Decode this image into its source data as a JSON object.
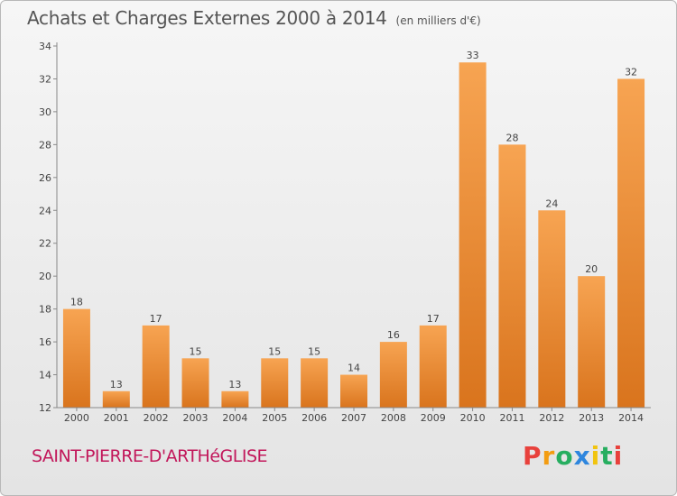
{
  "header": {
    "title": "Achats et Charges Externes 2000 à 2014",
    "unit": "(en milliers d'€)"
  },
  "footer": {
    "commune": "SAINT-PIERRE-D'ARTHéGLISE",
    "logo_text": "Proxiti"
  },
  "colors": {
    "bar_light": "#f7a452",
    "bar_dark": "#d9741d",
    "commune_text": "#c2185b",
    "logo_letters": [
      "#e8413c",
      "#f39c12",
      "#27ae60",
      "#2e86de",
      "#f1c40f",
      "#27ae60",
      "#e8413c"
    ]
  },
  "chart_data": {
    "type": "bar",
    "title": "Achats et Charges Externes 2000 à 2014",
    "subtitle": "(en milliers d'€)",
    "xlabel": "",
    "ylabel": "",
    "categories": [
      "2000",
      "2001",
      "2002",
      "2003",
      "2004",
      "2005",
      "2006",
      "2007",
      "2008",
      "2009",
      "2010",
      "2011",
      "2012",
      "2013",
      "2014"
    ],
    "values": [
      18,
      13,
      17,
      15,
      13,
      15,
      15,
      14,
      16,
      17,
      33,
      28,
      24,
      20,
      32
    ],
    "ylim": [
      12,
      34
    ],
    "yticks": [
      12,
      14,
      16,
      18,
      20,
      22,
      24,
      26,
      28,
      30,
      32,
      34
    ],
    "grid": false,
    "data_labels": true
  }
}
